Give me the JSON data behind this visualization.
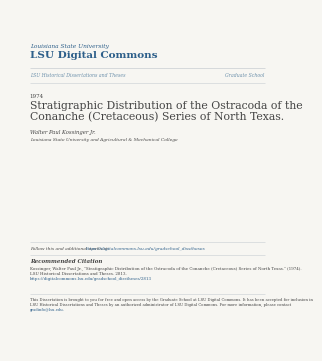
{
  "bg_color": "#f7f6f2",
  "header_univ": "Louisiana State University",
  "header_title": "LSU Digital Commons",
  "header_color": "#2d5f8a",
  "nav_left": "LSU Historical Dissertations and Theses",
  "nav_right": "Graduate School",
  "nav_color": "#6a8faa",
  "year": "1974",
  "main_title_line1": "Stratigraphic Distribution of the Ostracoda of the",
  "main_title_line2": "Conanche (Cretaceous) Series of North Texas.",
  "author": "Walter Paul Kossinger Jr.",
  "institution": "Louisiana State University and Agricultural & Mechanical College",
  "follow_label": "Follow this and additional works at: ",
  "follow_link": "https://digitalcommons.lsu.edu/gradschool_disstheses",
  "rec_header": "Recommended Citation",
  "rec_body_line1": "Kossinger, Walter Paul Jr., \"Stratigraphic Distribution of the Ostracoda of the Conanche (Cretaceous) Series of North Texas.\" (1974).",
  "rec_body_line2": "LSU Historical Dissertations and Theses. 2813.",
  "rec_body_link": "https://digitalcommons.lsu.edu/gradschool_disstheses/2813",
  "footer_line1": "This Dissertation is brought to you for free and open access by the Graduate School at LSU Digital Commons. It has been accepted for inclusion in",
  "footer_line2": "LSU Historical Dissertations and Theses by an authorized administrator of LSU Digital Commons. For more information, please contact",
  "footer_link": "gradinfo@lsu.edu.",
  "text_color": "#444444",
  "link_color": "#2d5f8a",
  "line_color": "#c8cdd2",
  "ml": 0.075,
  "mr": 0.965
}
